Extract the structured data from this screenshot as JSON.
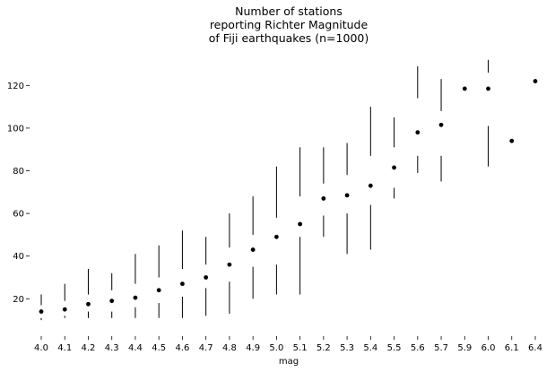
{
  "chart_data": {
    "type": "boxplot",
    "title": [
      "Number of stations",
      "reporting Richter Magnitude",
      "of Fiji earthquakes (n=1000)"
    ],
    "xlabel": "mag",
    "ylabel": "",
    "ylim": [
      5,
      134
    ],
    "yticks": [
      20,
      40,
      60,
      80,
      100,
      120
    ],
    "grid": false,
    "legend": "none",
    "series_color": "#000000",
    "categories": [
      "4.0",
      "4.1",
      "4.2",
      "4.3",
      "4.4",
      "4.5",
      "4.6",
      "4.7",
      "4.8",
      "4.9",
      "5.0",
      "5.1",
      "5.2",
      "5.3",
      "5.4",
      "5.5",
      "5.6",
      "5.7",
      "5.9",
      "6.0",
      "6.1",
      "6.4"
    ],
    "boxes": [
      {
        "mag": "4.0",
        "whisker_low": 10,
        "q1": 11,
        "median": 14,
        "q3": 17,
        "whisker_high": 22
      },
      {
        "mag": "4.1",
        "whisker_low": 11,
        "q1": 12,
        "median": 15,
        "q3": 19,
        "whisker_high": 27
      },
      {
        "mag": "4.2",
        "whisker_low": 11,
        "q1": 14,
        "median": 17.5,
        "q3": 22,
        "whisker_high": 34
      },
      {
        "mag": "4.3",
        "whisker_low": 11,
        "q1": 14,
        "median": 19,
        "q3": 24,
        "whisker_high": 32
      },
      {
        "mag": "4.4",
        "whisker_low": 11,
        "q1": 16,
        "median": 20.5,
        "q3": 27,
        "whisker_high": 41
      },
      {
        "mag": "4.5",
        "whisker_low": 11,
        "q1": 18,
        "median": 24,
        "q3": 30,
        "whisker_high": 45
      },
      {
        "mag": "4.6",
        "whisker_low": 11,
        "q1": 21,
        "median": 27,
        "q3": 34,
        "whisker_high": 52
      },
      {
        "mag": "4.7",
        "whisker_low": 12,
        "q1": 25,
        "median": 30,
        "q3": 36,
        "whisker_high": 49
      },
      {
        "mag": "4.8",
        "whisker_low": 13,
        "q1": 28,
        "median": 36,
        "q3": 44,
        "whisker_high": 60
      },
      {
        "mag": "4.9",
        "whisker_low": 20,
        "q1": 35,
        "median": 43,
        "q3": 50,
        "whisker_high": 68
      },
      {
        "mag": "5.0",
        "whisker_low": 22,
        "q1": 36,
        "median": 49,
        "q3": 58,
        "whisker_high": 82
      },
      {
        "mag": "5.1",
        "whisker_low": 22,
        "q1": 49,
        "median": 55,
        "q3": 68,
        "whisker_high": 91
      },
      {
        "mag": "5.2",
        "whisker_low": 49,
        "q1": 59,
        "median": 67,
        "q3": 74,
        "whisker_high": 91
      },
      {
        "mag": "5.3",
        "whisker_low": 41,
        "q1": 60,
        "median": 68.5,
        "q3": 78,
        "whisker_high": 93
      },
      {
        "mag": "5.4",
        "whisker_low": 43,
        "q1": 64,
        "median": 73,
        "q3": 87,
        "whisker_high": 110
      },
      {
        "mag": "5.5",
        "whisker_low": 67,
        "q1": 72,
        "median": 81.5,
        "q3": 91,
        "whisker_high": 105
      },
      {
        "mag": "5.6",
        "whisker_low": 79,
        "q1": 87,
        "median": 98,
        "q3": 114,
        "whisker_high": 129
      },
      {
        "mag": "5.7",
        "whisker_low": 75,
        "q1": 87,
        "median": 101.5,
        "q3": 108,
        "whisker_high": 123
      },
      {
        "mag": "5.9",
        "whisker_low": 118,
        "q1": 118,
        "median": 118.5,
        "q3": 119,
        "whisker_high": 119
      },
      {
        "mag": "6.0",
        "whisker_low": 82,
        "q1": 101,
        "median": 118.5,
        "q3": 126,
        "whisker_high": 132
      },
      {
        "mag": "6.1",
        "whisker_low": 94,
        "q1": 94,
        "median": 94,
        "q3": 94,
        "whisker_high": 94
      },
      {
        "mag": "6.4",
        "whisker_low": 122,
        "q1": 122,
        "median": 122,
        "q3": 122,
        "whisker_high": 122
      }
    ]
  }
}
